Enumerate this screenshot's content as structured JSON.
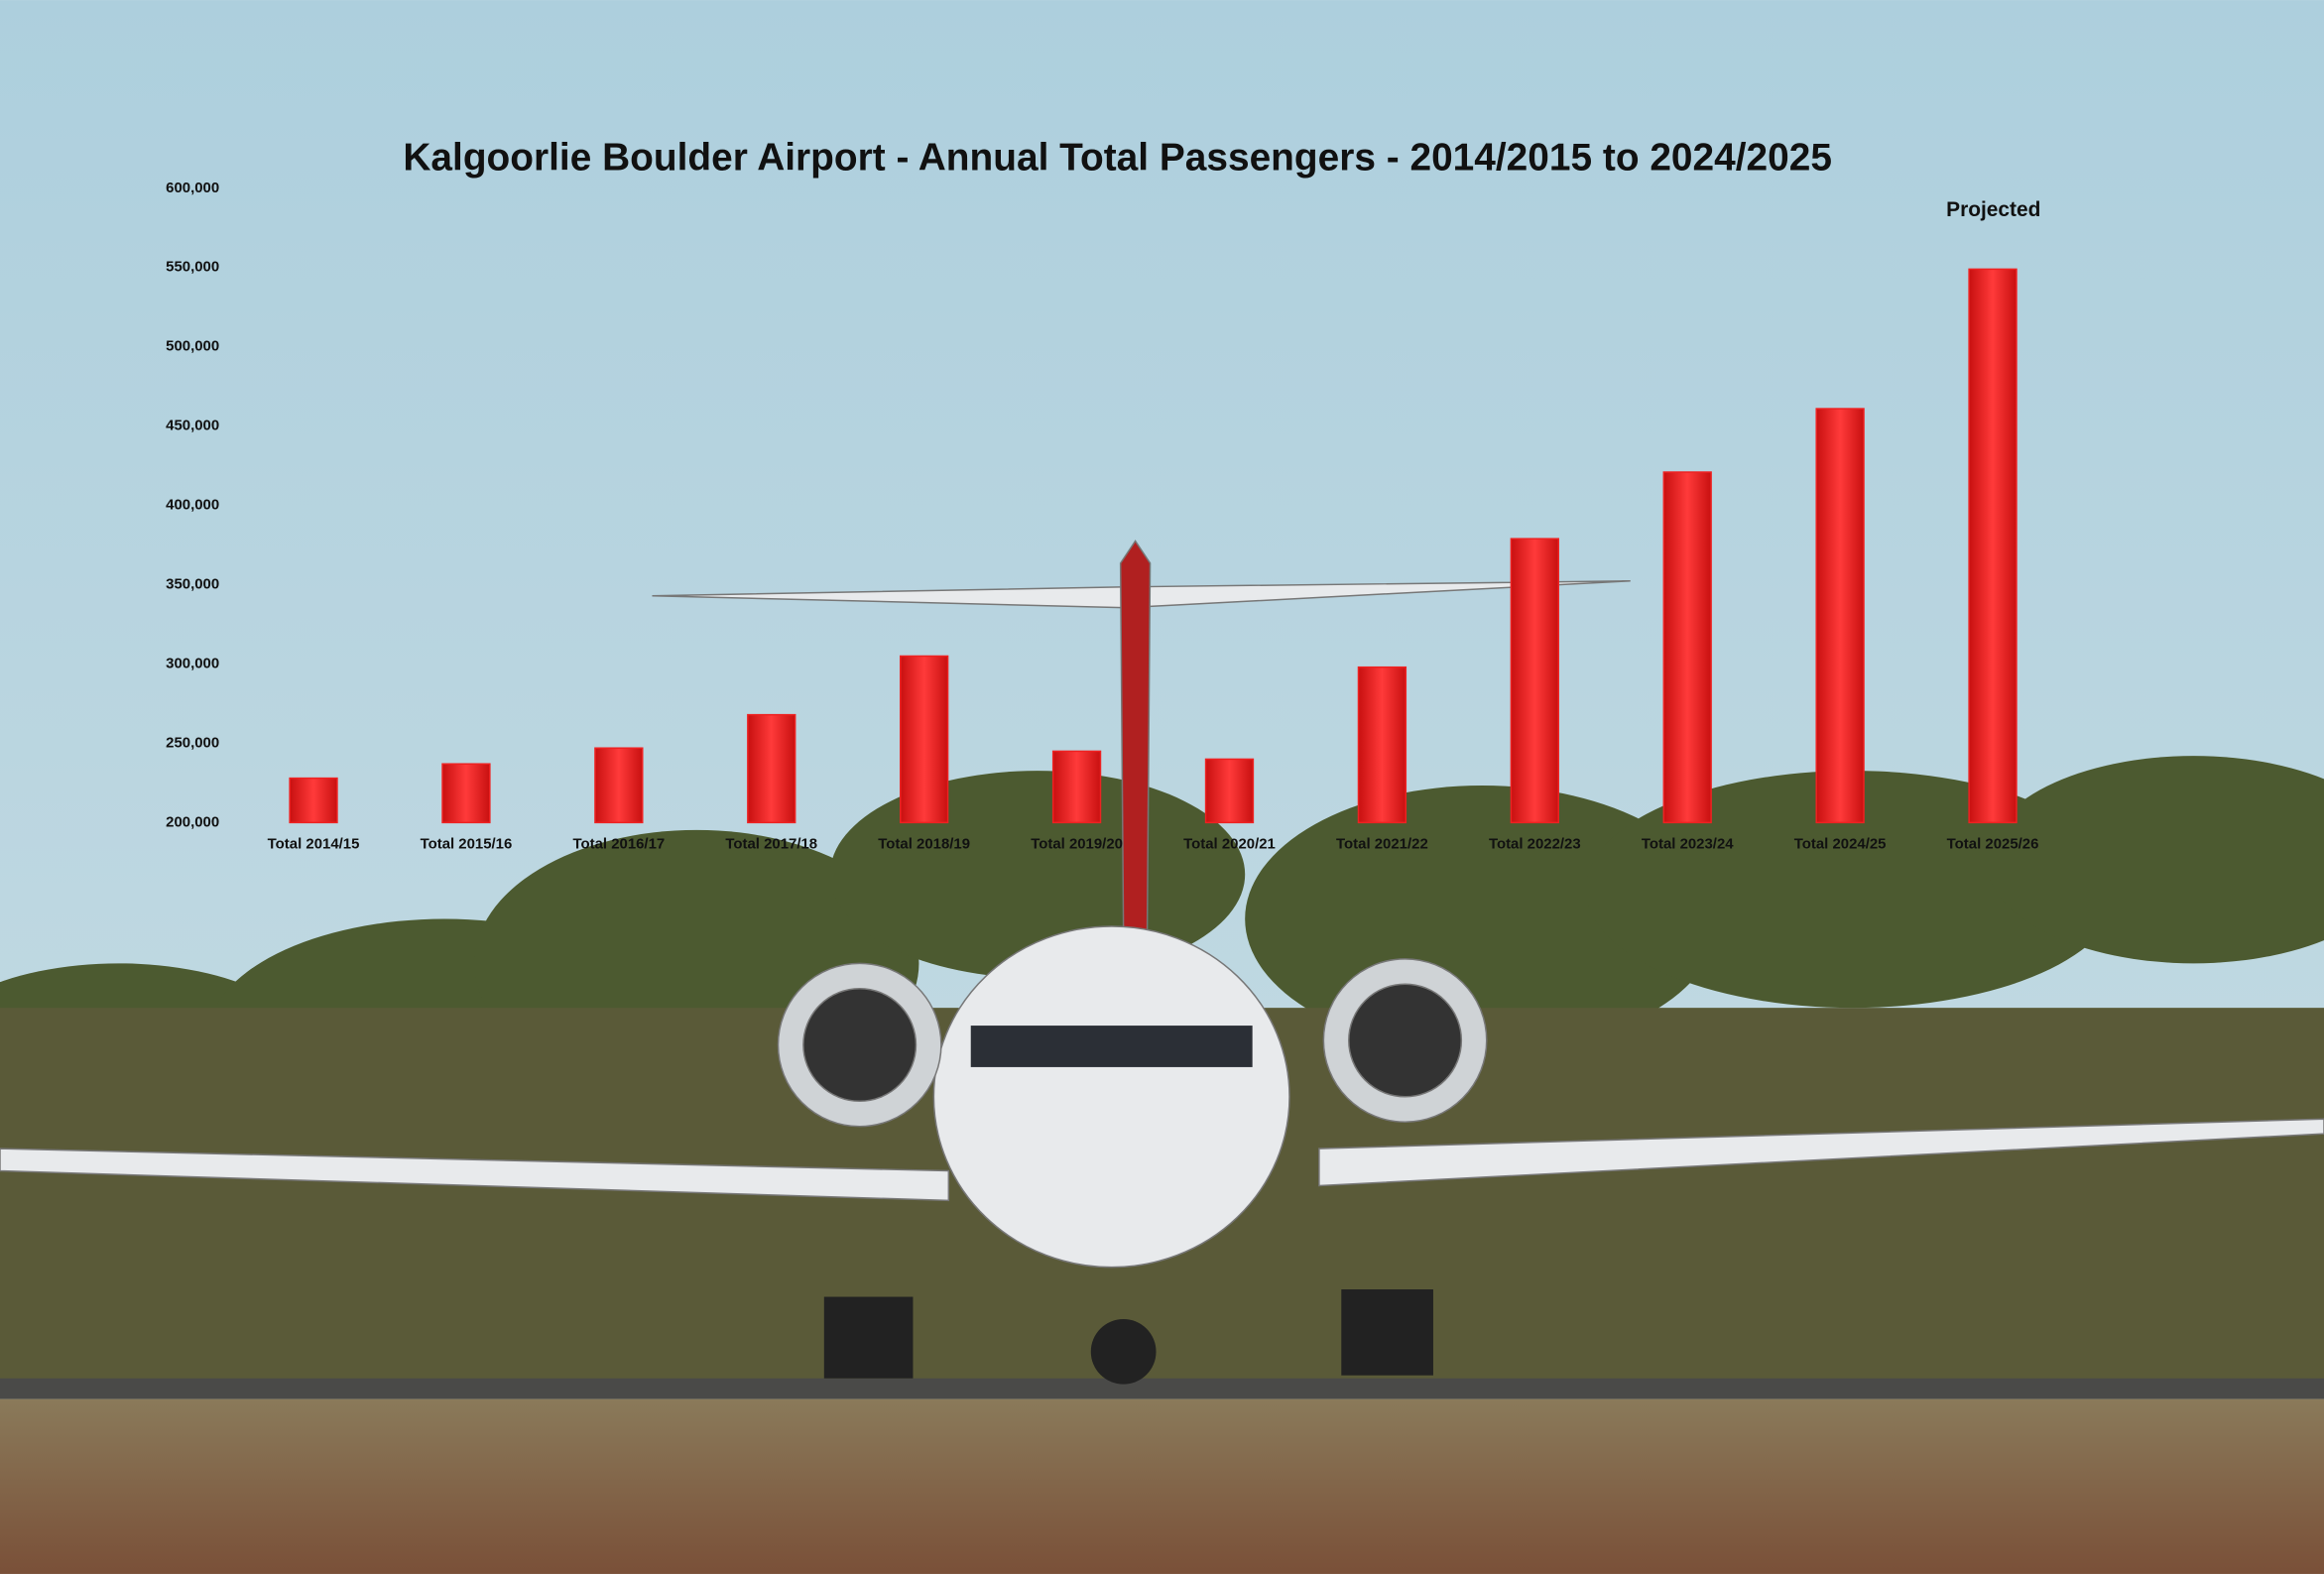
{
  "chart_data": {
    "type": "bar",
    "title": "Kalgoorlie Boulder Airport - Annual Total Passengers - 2014/2015 to 2024/2025",
    "annotation": "Projected",
    "categories": [
      "Total 2014/15",
      "Total 2015/16",
      "Total 2016/17",
      "Total 2017/18",
      "Total 2018/19",
      "Total 2019/20",
      "Total 2020/21",
      "Total 2021/22",
      "Total 2022/23",
      "Total 2023/24",
      "Total 2024/25",
      "Total 2025/26"
    ],
    "values": [
      228000,
      237000,
      247000,
      268000,
      305000,
      245000,
      240000,
      298000,
      379000,
      421000,
      461000,
      549000
    ],
    "color": "#ee2222",
    "ylim": [
      200000,
      600000
    ],
    "yticks": [
      {
        "value": 200000,
        "label": "200,000"
      },
      {
        "value": 250000,
        "label": "250,000"
      },
      {
        "value": 300000,
        "label": "300,000"
      },
      {
        "value": 350000,
        "label": "350,000"
      },
      {
        "value": 400000,
        "label": "400,000"
      },
      {
        "value": 450000,
        "label": "450,000"
      },
      {
        "value": 500000,
        "label": "500,000"
      },
      {
        "value": 550000,
        "label": "550,000"
      },
      {
        "value": 600000,
        "label": "600,000"
      }
    ],
    "grid": false
  }
}
